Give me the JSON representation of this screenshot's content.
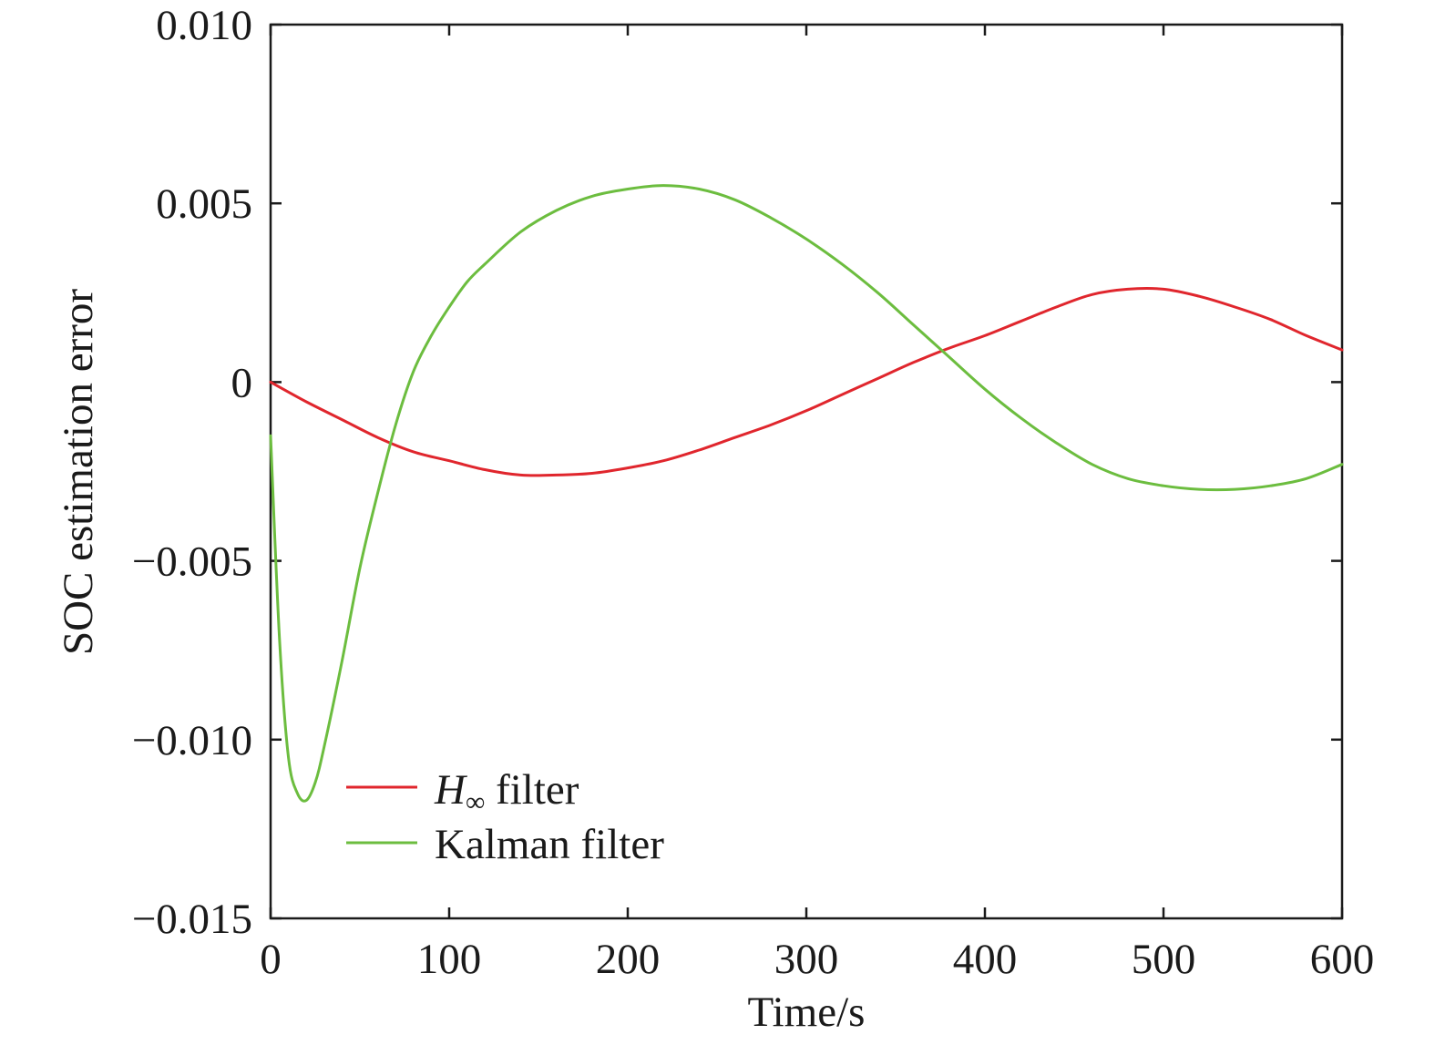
{
  "chart_data": {
    "type": "line",
    "xlabel": "Time/s",
    "ylabel": "SOC estimation error",
    "xlim": [
      0,
      600
    ],
    "ylim": [
      -0.015,
      0.01
    ],
    "x_ticks": [
      0,
      100,
      200,
      300,
      400,
      500,
      600
    ],
    "x_tick_labels": [
      "0",
      "100",
      "200",
      "300",
      "400",
      "500",
      "600"
    ],
    "y_ticks": [
      0.01,
      0.005,
      0,
      -0.005,
      -0.01,
      -0.015
    ],
    "y_tick_labels": [
      "0.010",
      "0.005",
      "0",
      "−0.005",
      "−0.010",
      "−0.015"
    ],
    "grid": false,
    "legend_position": "bottom-left",
    "series": [
      {
        "name_main": "H",
        "name_sub": "∞",
        "name_rest": " filter",
        "color": "#e0262d",
        "x": [
          0,
          20,
          40,
          60,
          80,
          100,
          120,
          140,
          160,
          180,
          200,
          220,
          240,
          260,
          280,
          300,
          320,
          340,
          360,
          380,
          400,
          420,
          440,
          460,
          480,
          500,
          520,
          540,
          560,
          580,
          600
        ],
        "y": [
          0,
          -0.00055,
          -0.00105,
          -0.00155,
          -0.00195,
          -0.0022,
          -0.00245,
          -0.0026,
          -0.0026,
          -0.00255,
          -0.0024,
          -0.0022,
          -0.0019,
          -0.00155,
          -0.0012,
          -0.0008,
          -0.00035,
          0.0001,
          0.00055,
          0.00095,
          0.0013,
          0.0017,
          0.0021,
          0.00245,
          0.0026,
          0.0026,
          0.0024,
          0.0021,
          0.00175,
          0.0013,
          0.0009
        ]
      },
      {
        "name_main": "Kalman filter",
        "color": "#6cbd3f",
        "x": [
          0,
          5,
          10,
          15,
          20,
          25,
          30,
          40,
          50,
          60,
          70,
          80,
          90,
          100,
          110,
          120,
          140,
          160,
          180,
          200,
          220,
          240,
          260,
          280,
          300,
          320,
          340,
          360,
          380,
          400,
          420,
          440,
          460,
          480,
          500,
          520,
          540,
          560,
          580,
          600
        ],
        "y": [
          -0.0015,
          -0.0072,
          -0.0105,
          -0.0115,
          -0.0117,
          -0.0112,
          -0.0102,
          -0.0078,
          -0.0052,
          -0.0031,
          -0.0012,
          0.0003,
          0.0013,
          0.0021,
          0.0028,
          0.0033,
          0.0042,
          0.0048,
          0.0052,
          0.0054,
          0.0055,
          0.0054,
          0.0051,
          0.0046,
          0.004,
          0.0033,
          0.0025,
          0.0016,
          0.0007,
          -0.0002,
          -0.001,
          -0.0017,
          -0.0023,
          -0.0027,
          -0.0029,
          -0.003,
          -0.003,
          -0.0029,
          -0.0027,
          -0.0023
        ]
      }
    ]
  }
}
